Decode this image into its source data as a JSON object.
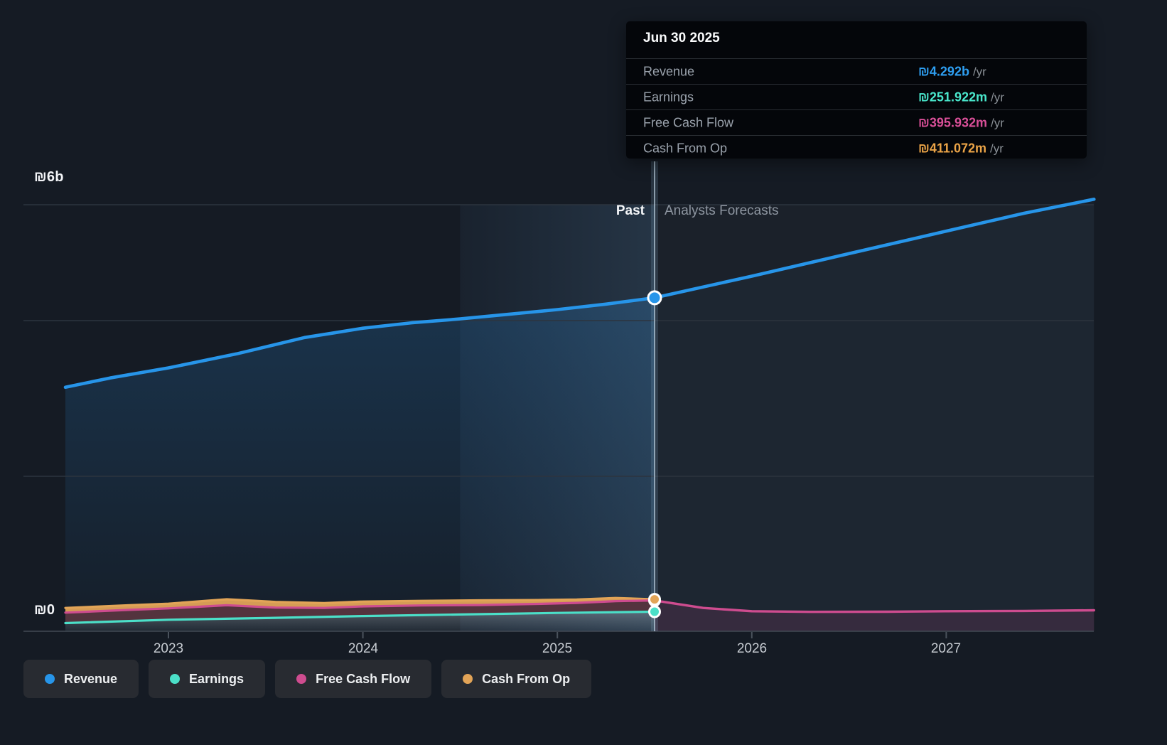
{
  "chart": {
    "y_axis": {
      "top_label": "₪6b",
      "bottom_label": "₪0"
    },
    "x_axis": {
      "ticks": [
        "2023",
        "2024",
        "2025",
        "2026",
        "2027"
      ]
    },
    "divider": {
      "past_label": "Past",
      "forecast_label": "Analysts Forecasts"
    },
    "tooltip": {
      "date": "Jun 30 2025",
      "rows": [
        {
          "label": "Revenue",
          "value": "₪4.292b",
          "suffix": "/yr",
          "value_color": "#2E9FF2"
        },
        {
          "label": "Earnings",
          "value": "₪251.922m",
          "suffix": "/yr",
          "value_color": "#4AE8CD"
        },
        {
          "label": "Free Cash Flow",
          "value": "₪395.932m",
          "suffix": "/yr",
          "value_color": "#D94F98"
        },
        {
          "label": "Cash From Op",
          "value": "₪411.072m",
          "suffix": "/yr",
          "value_color": "#EBA447"
        }
      ]
    },
    "legend": [
      {
        "label": "Revenue",
        "color": "#2795E9"
      },
      {
        "label": "Earnings",
        "color": "#4BDFC8"
      },
      {
        "label": "Free Cash Flow",
        "color": "#CE4C8F"
      },
      {
        "label": "Cash From Op",
        "color": "#E2A457"
      }
    ]
  },
  "chart_data": {
    "type": "area",
    "title": "Earnings and Revenue Growth — past results and analysts forecasts",
    "currency": "ILS (₪)",
    "value_unit": "billions",
    "x_unit": "calendar year (decimal)",
    "axis": {
      "y_labeled_ticks": [
        {
          "label": "₪6b",
          "value": 6
        },
        {
          "label": "₪0",
          "value": 0
        }
      ],
      "x_ticks": [
        2023,
        2024,
        2025,
        2026,
        2027
      ],
      "divider_x": 2025.5,
      "highlight_band_x": [
        2024.5,
        2025.5
      ],
      "grid": true,
      "legend_position": "bottom-left"
    },
    "marked_point": {
      "date": "Jun 30 2025",
      "revenue_b": 4.292,
      "earnings_m": 251.922,
      "free_cash_flow_m": 395.932,
      "cash_from_op_m": 411.072
    },
    "series": [
      {
        "name": "Revenue",
        "color": "#2795E9",
        "past": [
          [
            2022.47,
            3.14
          ],
          [
            2022.7,
            3.26
          ],
          [
            2023,
            3.39
          ],
          [
            2023.35,
            3.57
          ],
          [
            2023.7,
            3.78
          ],
          [
            2023.85,
            3.84
          ],
          [
            2024,
            3.9
          ],
          [
            2024.25,
            3.97
          ],
          [
            2024.5,
            4.02
          ],
          [
            2024.75,
            4.08
          ],
          [
            2025,
            4.14
          ],
          [
            2025.25,
            4.21
          ],
          [
            2025.5,
            4.292
          ]
        ],
        "forecast": [
          [
            2025.5,
            4.292
          ],
          [
            2026,
            4.57
          ],
          [
            2026.5,
            4.86
          ],
          [
            2027,
            5.15
          ],
          [
            2027.4,
            5.38
          ],
          [
            2027.76,
            5.56
          ]
        ]
      },
      {
        "name": "Earnings",
        "color": "#4BDFC8",
        "past": [
          [
            2022.47,
            0.105
          ],
          [
            2023,
            0.148
          ],
          [
            2023.5,
            0.17
          ],
          [
            2024,
            0.196
          ],
          [
            2024.5,
            0.216
          ],
          [
            2025,
            0.236
          ],
          [
            2025.5,
            0.251922
          ]
        ],
        "forecast": []
      },
      {
        "name": "Free Cash Flow",
        "color": "#CE4C8F",
        "past": [
          [
            2022.47,
            0.24
          ],
          [
            2022.8,
            0.275
          ],
          [
            2023,
            0.295
          ],
          [
            2023.3,
            0.335
          ],
          [
            2023.55,
            0.305
          ],
          [
            2023.8,
            0.3
          ],
          [
            2024,
            0.32
          ],
          [
            2024.3,
            0.332
          ],
          [
            2024.6,
            0.338
          ],
          [
            2024.9,
            0.352
          ],
          [
            2025.1,
            0.365
          ],
          [
            2025.3,
            0.388
          ],
          [
            2025.5,
            0.395932
          ]
        ],
        "forecast": [
          [
            2025.5,
            0.395932
          ],
          [
            2025.75,
            0.3
          ],
          [
            2026,
            0.258
          ],
          [
            2026.3,
            0.25
          ],
          [
            2026.7,
            0.252
          ],
          [
            2027,
            0.258
          ],
          [
            2027.4,
            0.262
          ],
          [
            2027.76,
            0.27
          ]
        ]
      },
      {
        "name": "Cash From Op",
        "color": "#E2A457",
        "past": [
          [
            2022.47,
            0.3
          ],
          [
            2022.8,
            0.335
          ],
          [
            2023,
            0.355
          ],
          [
            2023.3,
            0.412
          ],
          [
            2023.55,
            0.378
          ],
          [
            2023.8,
            0.362
          ],
          [
            2024,
            0.382
          ],
          [
            2024.3,
            0.392
          ],
          [
            2024.6,
            0.398
          ],
          [
            2024.9,
            0.402
          ],
          [
            2025.1,
            0.408
          ],
          [
            2025.3,
            0.428
          ],
          [
            2025.5,
            0.411072
          ]
        ],
        "forecast": []
      }
    ]
  }
}
